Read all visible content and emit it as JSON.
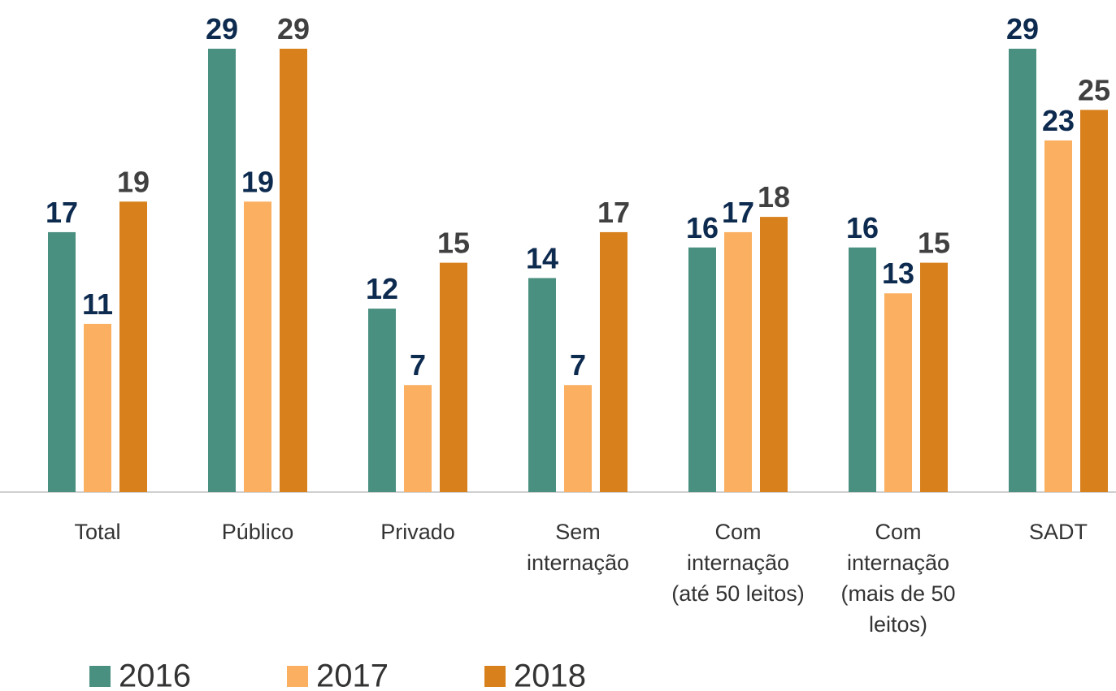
{
  "chart_data": {
    "type": "bar",
    "categories": [
      "Total",
      "Público",
      "Privado",
      "Sem internação",
      "Com internação (até 50 leitos)",
      "Com internação (mais de 50 leitos)",
      "SADT"
    ],
    "series": [
      {
        "name": "2016",
        "color": "#4a9080",
        "label_color": "#0d2a4f",
        "values": [
          17,
          29,
          12,
          14,
          16,
          16,
          29
        ]
      },
      {
        "name": "2017",
        "color": "#fbb061",
        "label_color": "#0d2a4f",
        "values": [
          11,
          19,
          7,
          7,
          17,
          13,
          23
        ]
      },
      {
        "name": "2018",
        "color": "#d8811c",
        "label_color": "#404040",
        "values": [
          19,
          29,
          15,
          17,
          18,
          15,
          25
        ]
      }
    ],
    "legend": "bottom-left"
  }
}
